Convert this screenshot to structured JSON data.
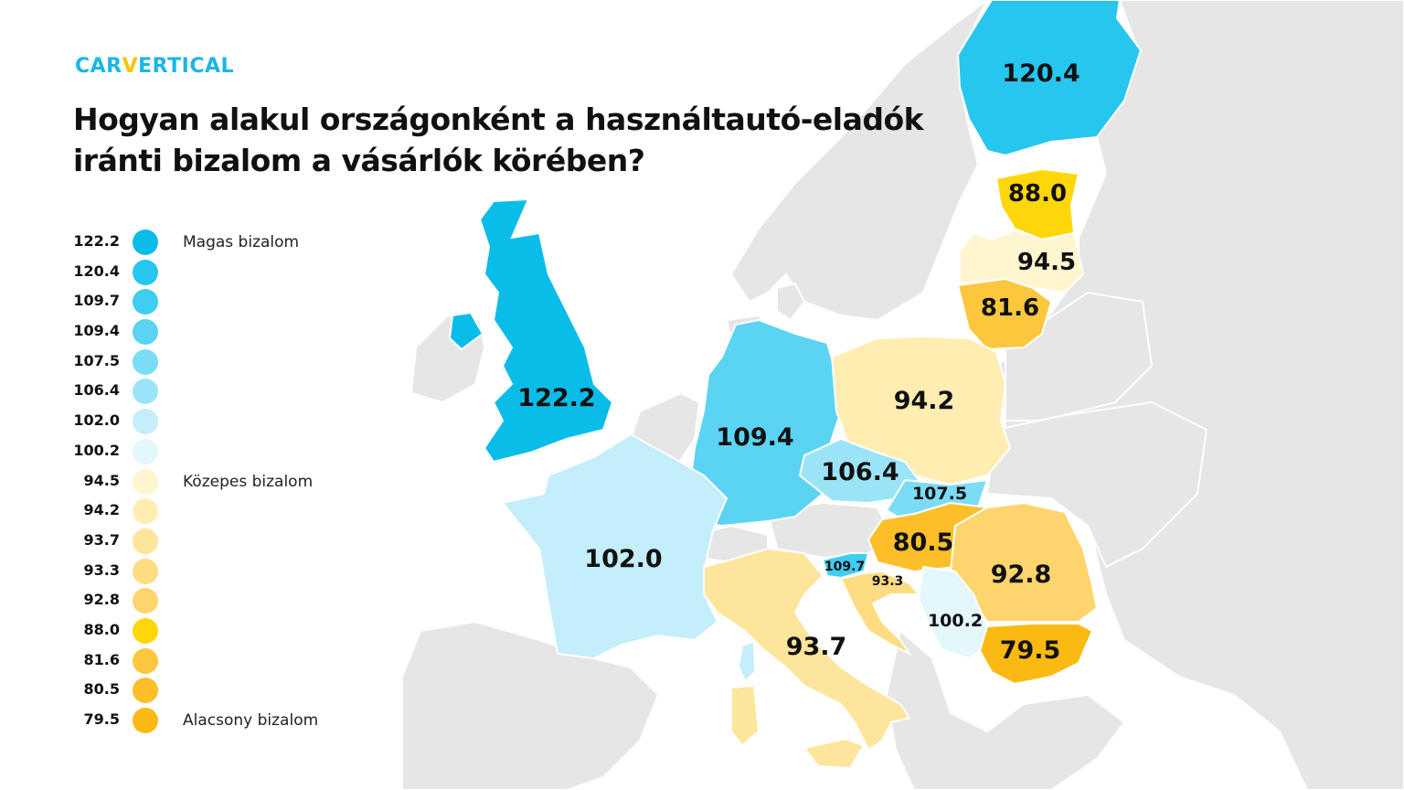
{
  "brand": {
    "logo_part1": "CAR",
    "logo_part2": "V",
    "logo_part3": "ERTICAL"
  },
  "title_line1": "Hogyan alakul országonként a használtautó-eladók",
  "title_line2": "iránti bizalom a vásárlók körében?",
  "legend": [
    {
      "value": "122.2",
      "color": "#0abde8",
      "caption": "Magas bizalom"
    },
    {
      "value": "120.4",
      "color": "#26c6ee",
      "caption": ""
    },
    {
      "value": "109.7",
      "color": "#3fcdf0",
      "caption": ""
    },
    {
      "value": "109.4",
      "color": "#5ad4f2",
      "caption": ""
    },
    {
      "value": "107.5",
      "color": "#7bdcf5",
      "caption": ""
    },
    {
      "value": "106.4",
      "color": "#9be4f7",
      "caption": ""
    },
    {
      "value": "102.0",
      "color": "#c3eefa",
      "caption": ""
    },
    {
      "value": "100.2",
      "color": "#e3f7fd",
      "caption": ""
    },
    {
      "value": "94.5",
      "color": "#fff5cf",
      "caption": "Közepes bizalom"
    },
    {
      "value": "94.2",
      "color": "#ffedb2",
      "caption": ""
    },
    {
      "value": "93.7",
      "color": "#fde59b",
      "caption": ""
    },
    {
      "value": "93.3",
      "color": "#fddc82",
      "caption": ""
    },
    {
      "value": "92.8",
      "color": "#fdd56c",
      "caption": ""
    },
    {
      "value": "88.0",
      "color": "#ffd60a",
      "caption": ""
    },
    {
      "value": "81.6",
      "color": "#fcc73d",
      "caption": ""
    },
    {
      "value": "80.5",
      "color": "#fcbf2a",
      "caption": ""
    },
    {
      "value": "79.5",
      "color": "#fbb913",
      "caption": "Alacsony bizalom"
    }
  ],
  "countries": {
    "finland": {
      "value": "120.4",
      "color": "#26c6ee"
    },
    "estonia": {
      "value": "88.0",
      "color": "#ffd60a"
    },
    "latvia": {
      "value": "94.5",
      "color": "#fff5cf"
    },
    "lithuania": {
      "value": "81.6",
      "color": "#fcc73d"
    },
    "uk": {
      "value": "122.2",
      "color": "#0abde8"
    },
    "germany": {
      "value": "109.4",
      "color": "#5ad4f2"
    },
    "poland": {
      "value": "94.2",
      "color": "#ffedb2"
    },
    "czechia": {
      "value": "106.4",
      "color": "#9be4f7"
    },
    "slovakia": {
      "value": "107.5",
      "color": "#7bdcf5"
    },
    "hungary": {
      "value": "80.5",
      "color": "#fcbf2a"
    },
    "romania": {
      "value": "92.8",
      "color": "#fdd56c"
    },
    "france": {
      "value": "102.0",
      "color": "#c3eefa"
    },
    "slovenia": {
      "value": "109.7",
      "color": "#3fcdf0"
    },
    "croatia": {
      "value": "93.3",
      "color": "#fddc82"
    },
    "serbia": {
      "value": "100.2",
      "color": "#e3f7fd"
    },
    "bulgaria": {
      "value": "79.5",
      "color": "#fbb913"
    },
    "italy": {
      "value": "93.7",
      "color": "#fde59b"
    }
  },
  "base_color": "#e6e6e6"
}
